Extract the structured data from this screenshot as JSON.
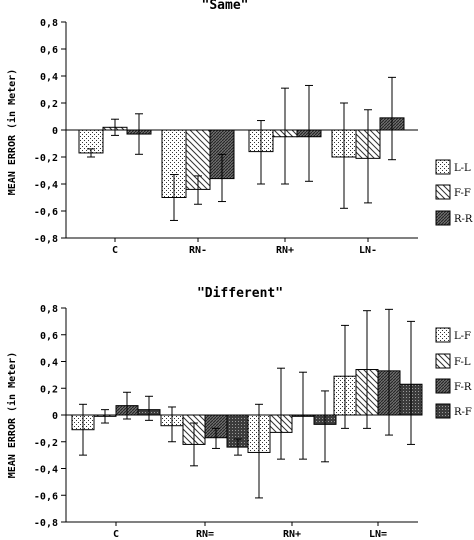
{
  "chart_data": [
    {
      "type": "bar",
      "title": "\"Same\"",
      "ylabel": "MEAN ERROR (in Meter)",
      "ylim": [
        -0.8,
        0.8
      ],
      "yticks": [
        "-0,8",
        "-0,6",
        "-0,4",
        "-0,2",
        "0",
        "0,2",
        "0,4",
        "0,6",
        "0,8"
      ],
      "categories": [
        "C",
        "RN-",
        "RN+",
        "LN-"
      ],
      "series": [
        {
          "name": "L-L",
          "pattern": "dots",
          "values": [
            -0.17,
            -0.5,
            -0.16,
            -0.2
          ],
          "err_low": [
            -0.2,
            -0.67,
            -0.4,
            -0.58
          ],
          "err_high": [
            -0.14,
            -0.33,
            0.07,
            0.2
          ]
        },
        {
          "name": "F-F",
          "pattern": "diag",
          "values": [
            0.02,
            -0.44,
            -0.05,
            -0.21
          ],
          "err_low": [
            -0.04,
            -0.55,
            -0.4,
            -0.54
          ],
          "err_high": [
            0.08,
            -0.34,
            0.31,
            0.15
          ]
        },
        {
          "name": "R-R",
          "pattern": "dense",
          "values": [
            -0.03,
            -0.36,
            -0.05,
            0.09
          ],
          "err_low": [
            -0.18,
            -0.53,
            -0.38,
            -0.22
          ],
          "err_high": [
            0.12,
            -0.18,
            0.33,
            0.39
          ]
        }
      ]
    },
    {
      "type": "bar",
      "title": "\"Different\"",
      "ylabel": "MEAN ERROR (in Meter)",
      "ylim": [
        -0.8,
        0.8
      ],
      "yticks": [
        "-0,8",
        "-0,6",
        "-0,4",
        "-0,2",
        "0",
        "0,2",
        "0,4",
        "0,6",
        "0,8"
      ],
      "categories": [
        "C",
        "RN=",
        "RN+",
        "LN="
      ],
      "series": [
        {
          "name": "L-F",
          "pattern": "dots",
          "values": [
            -0.11,
            -0.08,
            -0.28,
            0.29
          ],
          "err_low": [
            -0.3,
            -0.2,
            -0.62,
            -0.1
          ],
          "err_high": [
            0.08,
            0.06,
            0.08,
            0.67
          ]
        },
        {
          "name": "F-L",
          "pattern": "diag",
          "values": [
            -0.01,
            -0.22,
            -0.13,
            0.34
          ],
          "err_low": [
            -0.06,
            -0.38,
            -0.33,
            -0.1
          ],
          "err_high": [
            0.04,
            -0.06,
            0.35,
            0.78
          ]
        },
        {
          "name": "F-R",
          "pattern": "dense",
          "values": [
            0.07,
            -0.17,
            -0.01,
            0.33
          ],
          "err_low": [
            -0.03,
            -0.25,
            -0.33,
            -0.15
          ],
          "err_high": [
            0.17,
            -0.1,
            0.32,
            0.79
          ]
        },
        {
          "name": "R-F",
          "pattern": "dark",
          "values": [
            0.04,
            -0.24,
            -0.07,
            0.23
          ],
          "err_low": [
            -0.04,
            -0.3,
            -0.35,
            -0.22
          ],
          "err_high": [
            0.14,
            -0.18,
            0.18,
            0.7
          ]
        }
      ]
    }
  ]
}
